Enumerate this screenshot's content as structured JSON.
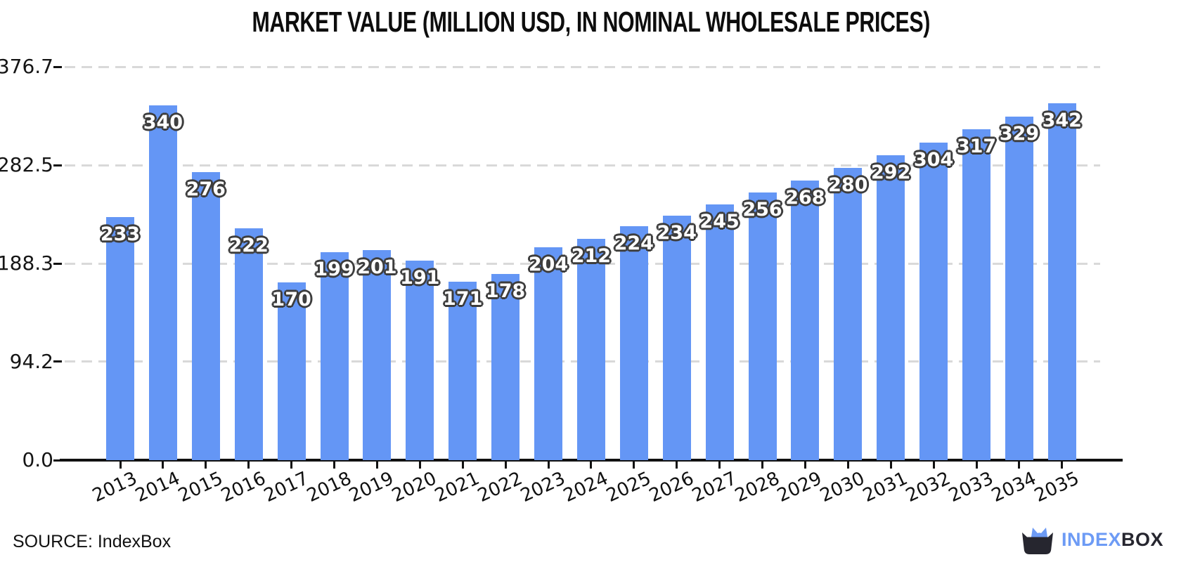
{
  "title": "MARKET VALUE (MILLION USD, IN NOMINAL WHOLESALE PRICES)",
  "source_label": "SOURCE: IndexBox",
  "logo": {
    "part_blue": "INDEX",
    "part_dark": "BOX",
    "icon": "cat-in-box-icon"
  },
  "colors": {
    "bar": "#6496f5",
    "grid": "#d9d9d9",
    "axis": "#111111",
    "value_label_fill": "#ffffff",
    "value_label_outline": "#3d3d3d",
    "logo_blue": "#6d9bf5",
    "logo_dark": "#26262f"
  },
  "y_axis": {
    "tick_labels_top_down": [
      "376.7",
      "282.5",
      "188.3",
      "94.2",
      "0.0"
    ]
  },
  "chart_data": {
    "type": "bar",
    "title": "MARKET VALUE (MILLION USD, IN NOMINAL WHOLESALE PRICES)",
    "categories": [
      "2013",
      "2014",
      "2015",
      "2016",
      "2017",
      "2018",
      "2019",
      "2020",
      "2021",
      "2022",
      "2023",
      "2024",
      "2025",
      "2026",
      "2027",
      "2028",
      "2029",
      "2030",
      "2031",
      "2032",
      "2033",
      "2034",
      "2035"
    ],
    "values": [
      233,
      340,
      276,
      222,
      170,
      199,
      201,
      191,
      171,
      178,
      204,
      212,
      224,
      234,
      245,
      256,
      268,
      280,
      292,
      304,
      317,
      329,
      342
    ],
    "series_name": "Market value",
    "xlabel": "",
    "ylabel": "",
    "ylim": [
      0,
      376.7
    ],
    "yticks": [
      0.0,
      94.2,
      188.3,
      282.5,
      376.7
    ],
    "grid": "horizontal-dashed",
    "legend": "none",
    "value_labels": "inside-bar-top"
  }
}
